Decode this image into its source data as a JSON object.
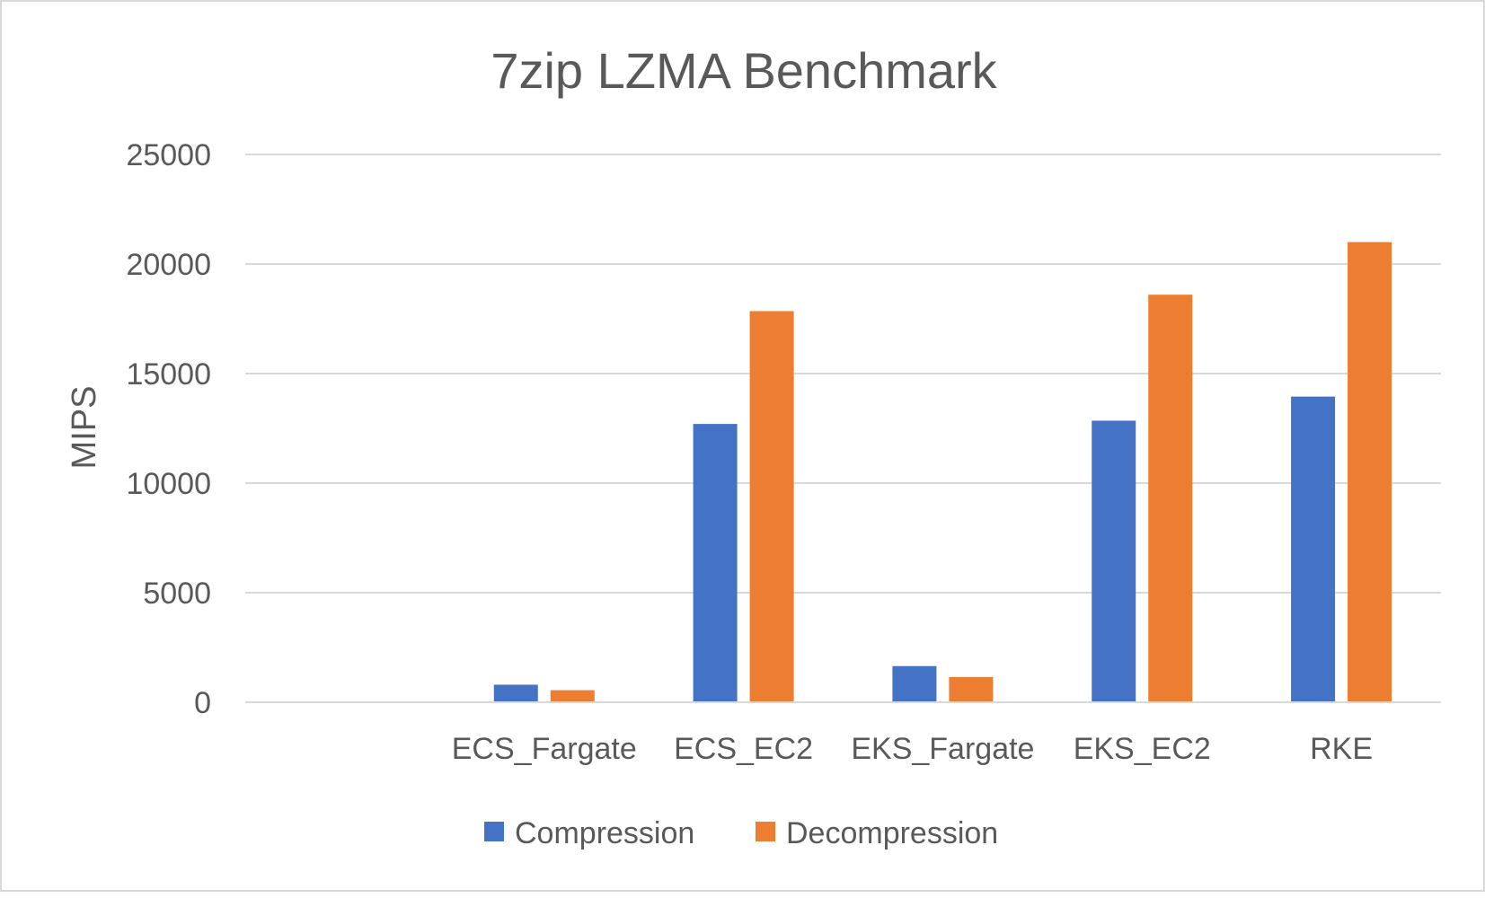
{
  "chart_data": {
    "type": "bar",
    "title": "7zip LZMA Benchmark",
    "xlabel": "",
    "ylabel": "MIPS",
    "ylim": [
      0,
      25000
    ],
    "yticks": [
      0,
      5000,
      10000,
      15000,
      20000,
      25000
    ],
    "categories": [
      "",
      "ECS_Fargate",
      "ECS_EC2",
      "EKS_Fargate",
      "EKS_EC2",
      "RKE"
    ],
    "series": [
      {
        "name": "Compression",
        "color": "#4472c4",
        "values": [
          null,
          800,
          12700,
          1650,
          12850,
          13950
        ]
      },
      {
        "name": "Decompression",
        "color": "#ed7d31",
        "values": [
          null,
          550,
          17850,
          1150,
          18600,
          21000
        ]
      }
    ],
    "grid": true,
    "legend_position": "bottom"
  }
}
